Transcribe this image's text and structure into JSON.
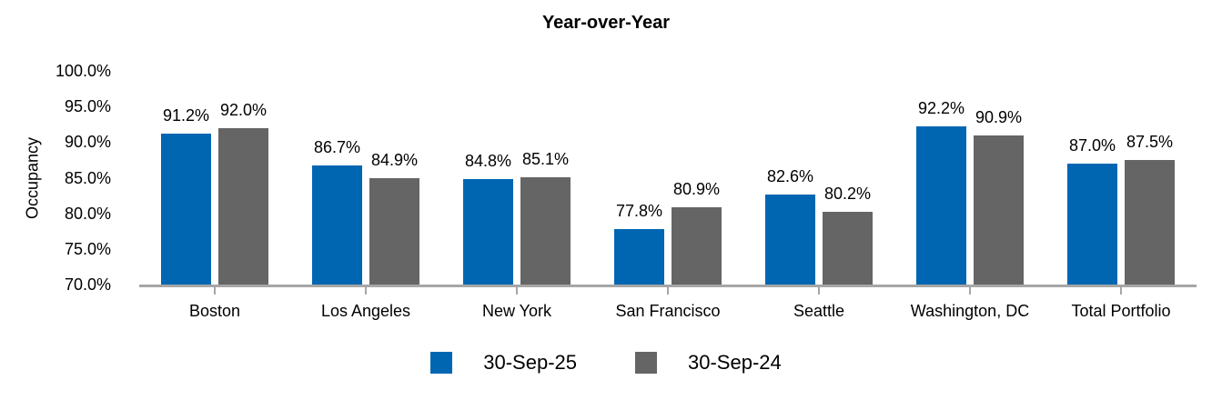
{
  "title": "Year-over-Year",
  "y_axis": {
    "label": "Occupancy",
    "tick_labels": [
      "100.0%",
      "95.0%",
      "90.0%",
      "85.0%",
      "80.0%",
      "75.0%",
      "70.0%"
    ],
    "min": 70,
    "max": 100,
    "step": 5
  },
  "colors": {
    "series1": "#0066B2",
    "series2": "#656565",
    "axis": "#a6a6a6",
    "text": "#000000",
    "background": "#ffffff"
  },
  "legend": {
    "items": [
      {
        "label": "30-Sep-25",
        "color": "#0066B2"
      },
      {
        "label": "30-Sep-24",
        "color": "#656565"
      }
    ]
  },
  "chart_data": {
    "type": "bar",
    "title": "Year-over-Year",
    "ylabel": "Occupancy",
    "ylim": [
      70,
      100
    ],
    "grid": false,
    "legend_position": "bottom",
    "categories": [
      "Boston",
      "Los Angeles",
      "New York",
      "San Francisco",
      "Seattle",
      "Washington, DC",
      "Total Portfolio"
    ],
    "series": [
      {
        "name": "30-Sep-25",
        "color": "#0066B2",
        "values": [
          91.2,
          86.7,
          84.8,
          77.8,
          82.6,
          92.2,
          87.0
        ],
        "labels": [
          "91.2%",
          "86.7%",
          "84.8%",
          "77.8%",
          "82.6%",
          "92.2%",
          "87.0%"
        ]
      },
      {
        "name": "30-Sep-24",
        "color": "#656565",
        "values": [
          92.0,
          84.9,
          85.1,
          80.9,
          80.2,
          90.9,
          87.5
        ],
        "labels": [
          "92.0%",
          "84.9%",
          "85.1%",
          "80.9%",
          "80.2%",
          "90.9%",
          "87.5%"
        ]
      }
    ]
  }
}
